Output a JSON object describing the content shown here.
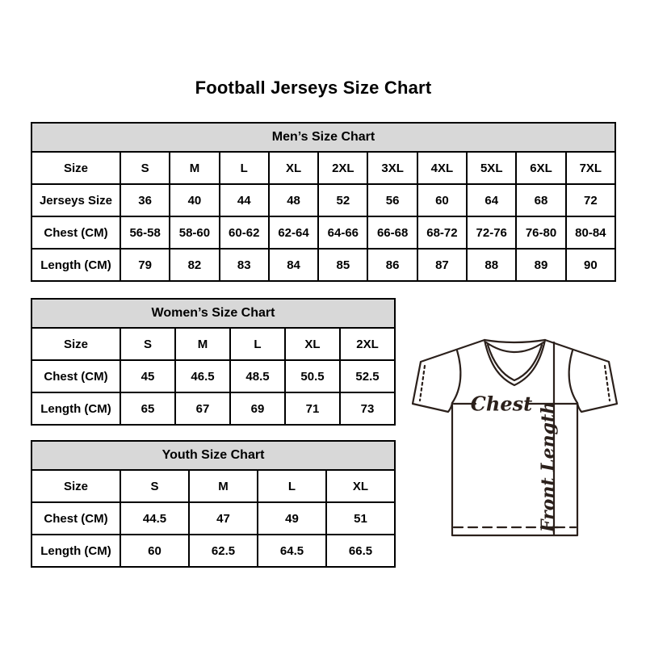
{
  "page": {
    "title": "Football Jerseys Size Chart"
  },
  "tables": {
    "mens": {
      "title": "Men’s Size Chart",
      "rows": [
        {
          "label": "Size",
          "values": [
            "S",
            "M",
            "L",
            "XL",
            "2XL",
            "3XL",
            "4XL",
            "5XL",
            "6XL",
            "7XL"
          ]
        },
        {
          "label": "Jerseys Size",
          "values": [
            "36",
            "40",
            "44",
            "48",
            "52",
            "56",
            "60",
            "64",
            "68",
            "72"
          ]
        },
        {
          "label": "Chest (CM)",
          "values": [
            "56-58",
            "58-60",
            "60-62",
            "62-64",
            "64-66",
            "66-68",
            "68-72",
            "72-76",
            "76-80",
            "80-84"
          ]
        },
        {
          "label": "Length (CM)",
          "values": [
            "79",
            "82",
            "83",
            "84",
            "85",
            "86",
            "87",
            "88",
            "89",
            "90"
          ]
        }
      ]
    },
    "womens": {
      "title": "Women’s Size Chart",
      "rows": [
        {
          "label": "Size",
          "values": [
            "S",
            "M",
            "L",
            "XL",
            "2XL"
          ]
        },
        {
          "label": "Chest (CM)",
          "values": [
            "45",
            "46.5",
            "48.5",
            "50.5",
            "52.5"
          ]
        },
        {
          "label": "Length (CM)",
          "values": [
            "65",
            "67",
            "69",
            "71",
            "73"
          ]
        }
      ]
    },
    "youth": {
      "title": "Youth Size Chart",
      "rows": [
        {
          "label": "Size",
          "values": [
            "S",
            "M",
            "L",
            "XL"
          ]
        },
        {
          "label": "Chest (CM)",
          "values": [
            "44.5",
            "47",
            "49",
            "51"
          ]
        },
        {
          "label": "Length (CM)",
          "values": [
            "60",
            "62.5",
            "64.5",
            "66.5"
          ]
        }
      ]
    }
  },
  "diagram": {
    "chest_label": "Chest",
    "front_length_label": "Front Length"
  },
  "colors": {
    "table_header_bg": "#d8d8d8",
    "table_border": "#000000",
    "diagram_stroke": "#2b201b",
    "text": "#000000",
    "background": "#ffffff"
  }
}
